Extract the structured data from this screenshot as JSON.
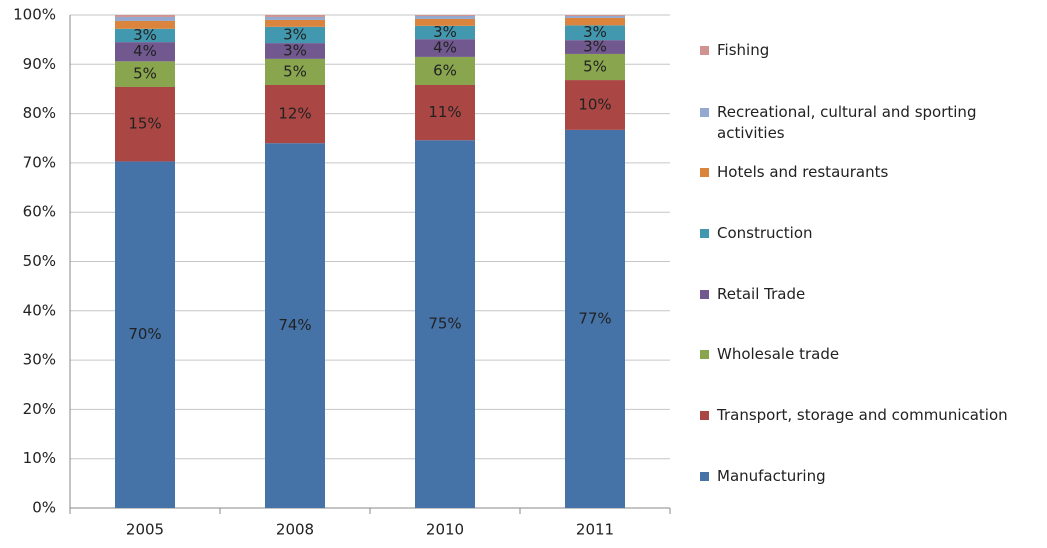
{
  "chart_data": {
    "type": "stacked_bar",
    "categories": [
      "2005",
      "2008",
      "2010",
      "2011"
    ],
    "ylim": [
      0,
      100
    ],
    "yticks": [
      {
        "value": 0,
        "label": "0%"
      },
      {
        "value": 10,
        "label": "10%"
      },
      {
        "value": 20,
        "label": "20%"
      },
      {
        "value": 30,
        "label": "30%"
      },
      {
        "value": 40,
        "label": "40%"
      },
      {
        "value": 50,
        "label": "50%"
      },
      {
        "value": 60,
        "label": "60%"
      },
      {
        "value": 70,
        "label": "70%"
      },
      {
        "value": 80,
        "label": "80%"
      },
      {
        "value": 90,
        "label": "90%"
      },
      {
        "value": 100,
        "label": "100%"
      }
    ],
    "grid": true,
    "legend": "right",
    "series": [
      {
        "name": "Manufacturing",
        "color": "#4572A7",
        "values": [
          70.3,
          74.0,
          74.6,
          76.7
        ],
        "value_labels": [
          "70%",
          "74%",
          "75%",
          "77%"
        ]
      },
      {
        "name": "Transport, storage and communication",
        "color": "#AA4643",
        "values": [
          15.1,
          11.8,
          11.2,
          10.1
        ],
        "value_labels": [
          "15%",
          "12%",
          "11%",
          "10%"
        ]
      },
      {
        "name": "Wholesale trade",
        "color": "#89A54E",
        "values": [
          5.2,
          5.3,
          5.7,
          5.3
        ],
        "value_labels": [
          "5%",
          "5%",
          "6%",
          "5%"
        ]
      },
      {
        "name": "Retail Trade",
        "color": "#71588F",
        "values": [
          3.9,
          3.2,
          3.6,
          2.8
        ],
        "value_labels": [
          "4%",
          "3%",
          "4%",
          "3%"
        ]
      },
      {
        "name": "Construction",
        "color": "#4198AF",
        "values": [
          2.7,
          3.3,
          2.7,
          3.0
        ],
        "value_labels": [
          "3%",
          "3%",
          "3%",
          "3%"
        ]
      },
      {
        "name": "Hotels and restaurants",
        "color": "#DB843D",
        "values": [
          1.6,
          1.4,
          1.4,
          1.5
        ]
      },
      {
        "name": "Recreational, cultural and sporting activities",
        "color": "#93A9CF",
        "values": [
          0.8,
          0.6,
          0.6,
          0.4
        ]
      },
      {
        "name": "Fishing",
        "color": "#D19392",
        "values": [
          0.4,
          0.4,
          0.2,
          0.2
        ]
      }
    ]
  }
}
